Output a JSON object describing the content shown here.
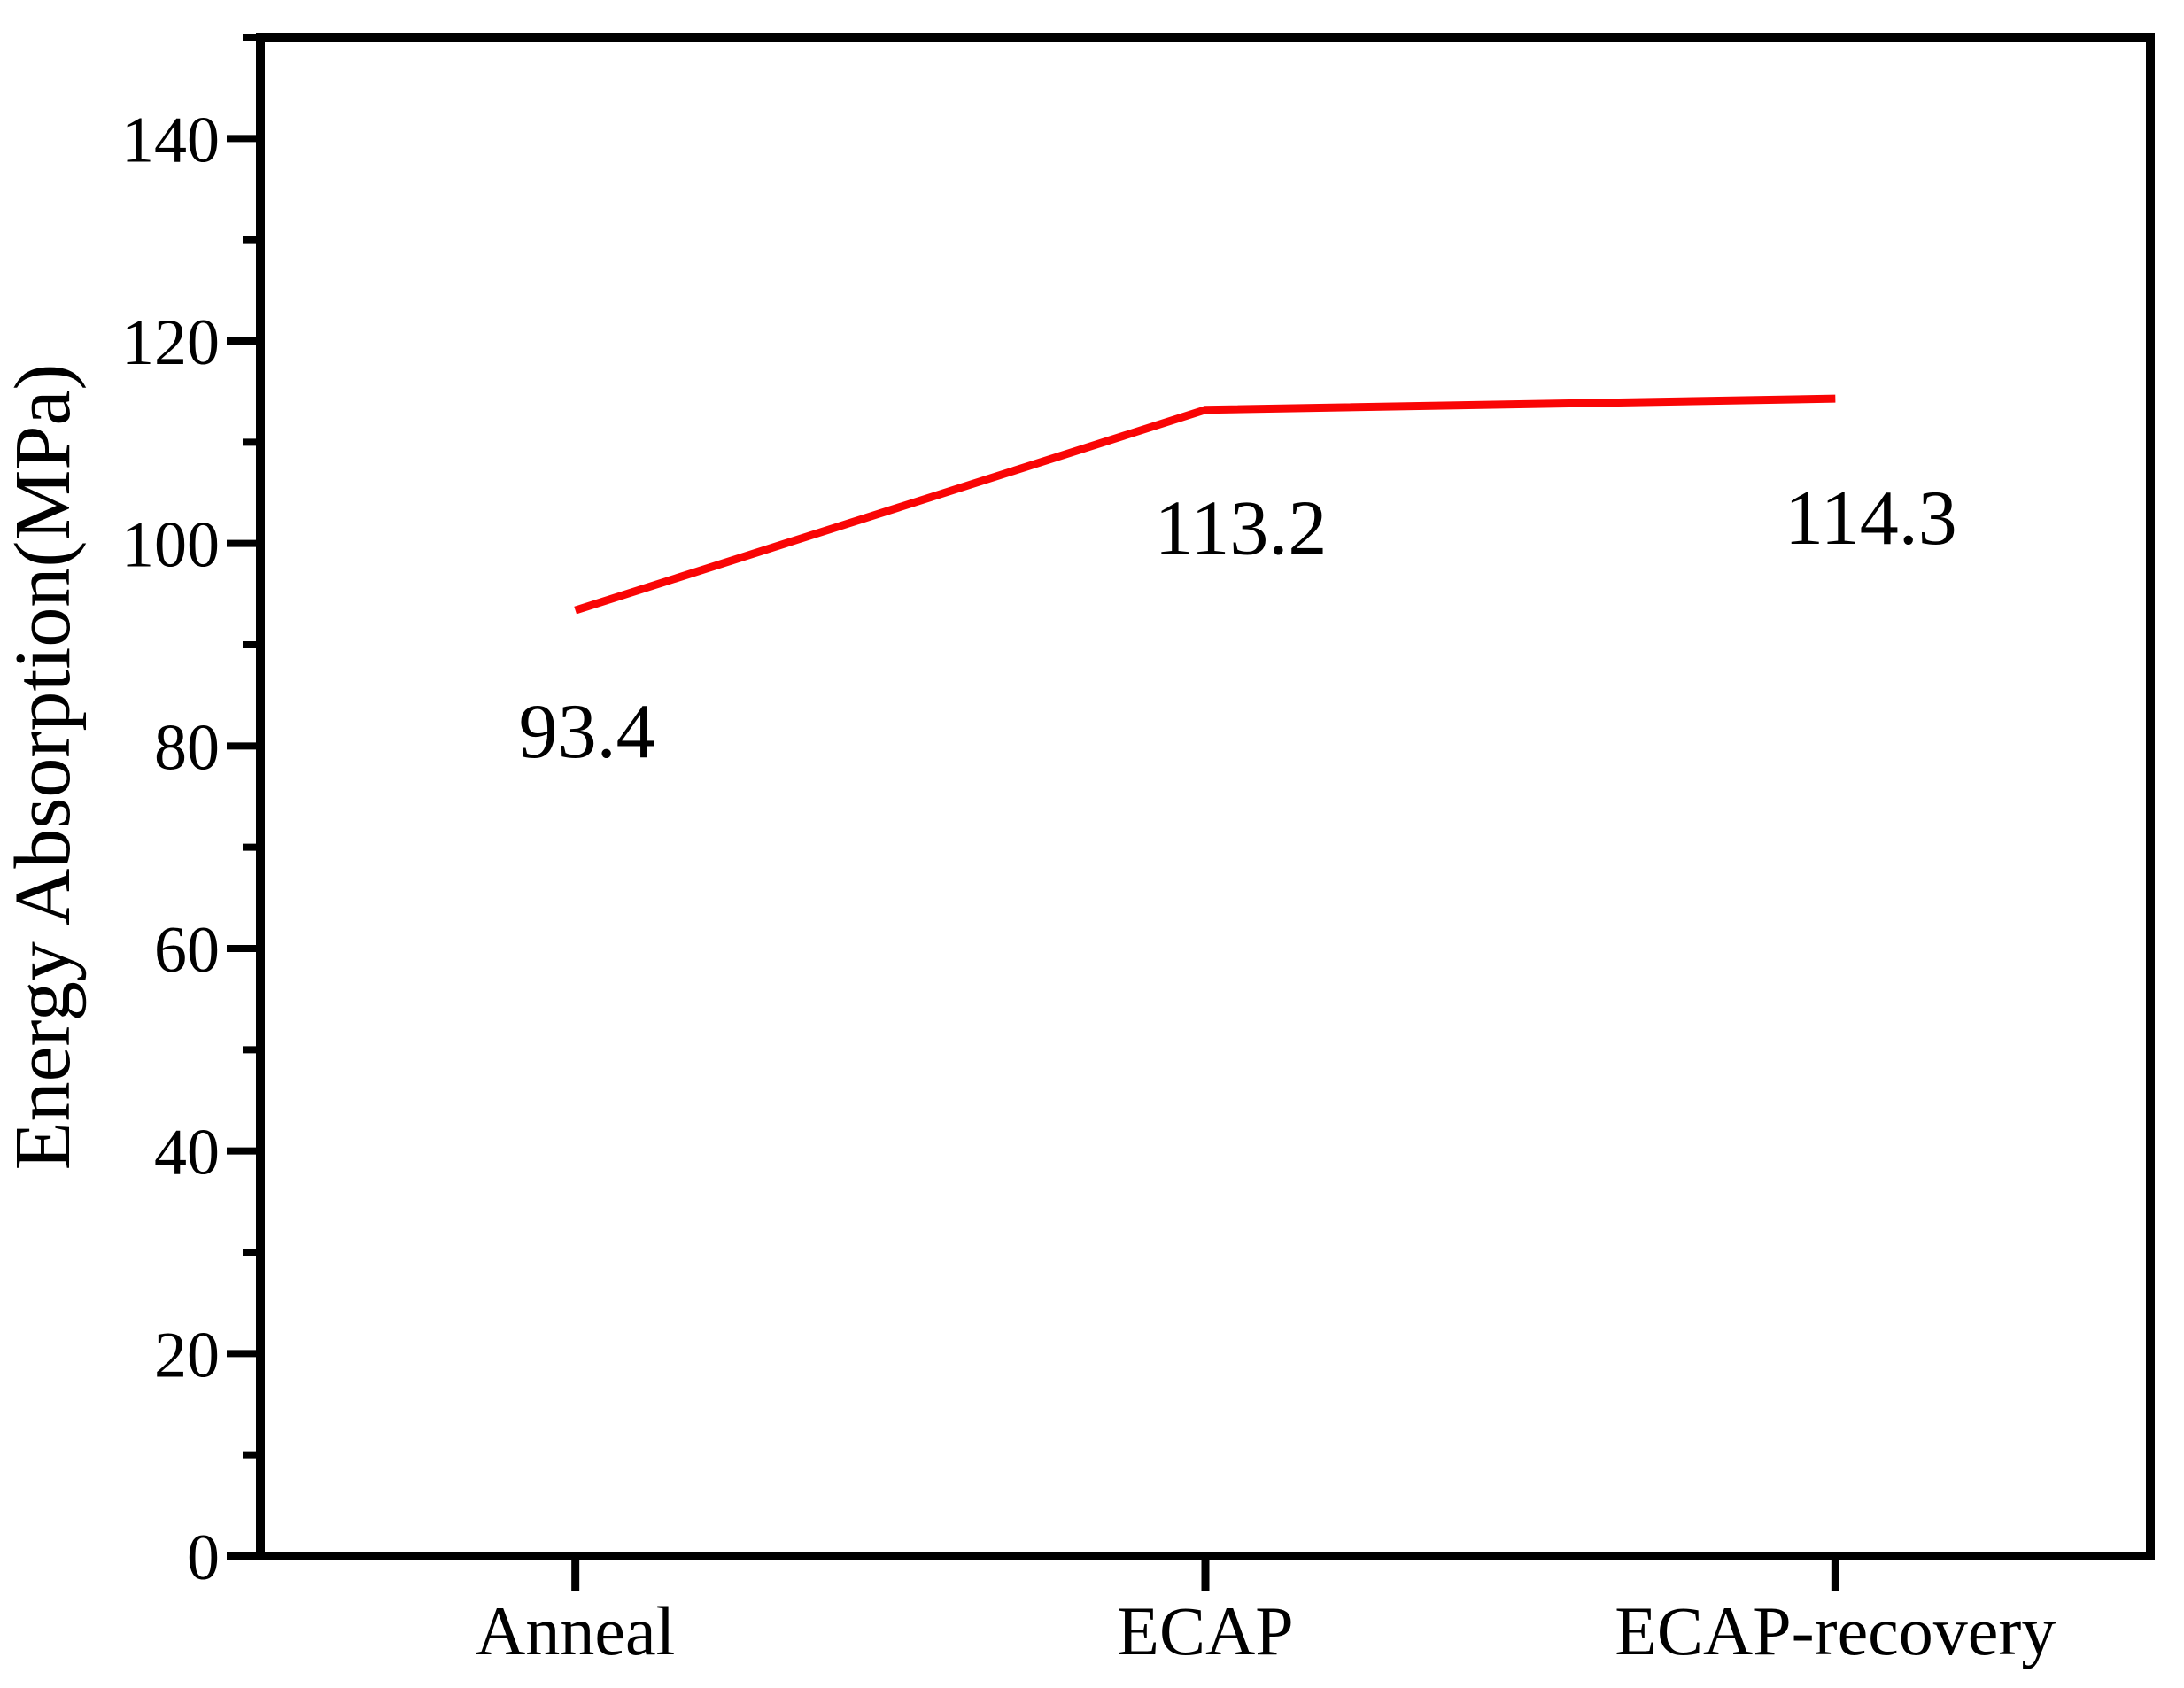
{
  "figure": {
    "background": "#ffffff",
    "axis_color": "#000000",
    "text_color": "#000000"
  },
  "chart_data": {
    "type": "line",
    "categories": [
      "Anneal",
      "ECAP",
      "ECAP-recovery"
    ],
    "series": [
      {
        "name": "Energy Absorption",
        "values": [
          93.4,
          113.2,
          114.3
        ],
        "color": "#f90505"
      }
    ],
    "point_labels": [
      "93.4",
      "113.2",
      "114.3"
    ],
    "title": "",
    "xlabel": "",
    "ylabel": "Energy Absorption(MPa)",
    "ylim": [
      0,
      150
    ],
    "yticks": [
      0,
      20,
      40,
      60,
      80,
      100,
      120,
      140
    ],
    "ytick_step": 20,
    "yminor_step": 10,
    "grid": false,
    "legend": "none",
    "layout_hints": {
      "frame": "full-box",
      "ticks": "outside-left-bottom",
      "label_dx": [
        13,
        40,
        40
      ],
      "label_dy": [
        166,
        163,
        164
      ]
    }
  }
}
